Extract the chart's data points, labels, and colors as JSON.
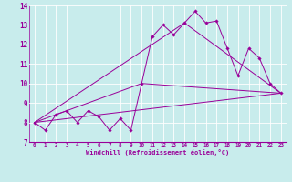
{
  "xlabel": "Windchill (Refroidissement éolien,°C)",
  "background_color": "#c8ecec",
  "grid_color": "#aadddd",
  "line_color": "#990099",
  "xlim": [
    -0.5,
    23.5
  ],
  "ylim": [
    7,
    14
  ],
  "xtick_labels": [
    "0",
    "1",
    "2",
    "3",
    "4",
    "5",
    "6",
    "7",
    "8",
    "9",
    "10",
    "11",
    "12",
    "13",
    "14",
    "15",
    "16",
    "17",
    "18",
    "19",
    "20",
    "21",
    "22",
    "23"
  ],
  "ytick_labels": [
    "7",
    "8",
    "9",
    "10",
    "11",
    "12",
    "13",
    "14"
  ],
  "series1_x": [
    0,
    1,
    2,
    3,
    4,
    5,
    6,
    7,
    8,
    9,
    10,
    11,
    12,
    13,
    14,
    15,
    16,
    17,
    18,
    19,
    20,
    21,
    22,
    23
  ],
  "series1_y": [
    8.0,
    7.6,
    8.4,
    8.6,
    8.0,
    8.6,
    8.3,
    7.6,
    8.2,
    7.6,
    10.0,
    12.4,
    13.0,
    12.5,
    13.1,
    13.7,
    13.1,
    13.2,
    11.8,
    10.4,
    11.8,
    11.3,
    10.0,
    9.5
  ],
  "series2_x": [
    0,
    23
  ],
  "series2_y": [
    8.0,
    9.5
  ],
  "series3_x": [
    0,
    10,
    23
  ],
  "series3_y": [
    8.0,
    10.0,
    9.5
  ],
  "series4_x": [
    0,
    14,
    23
  ],
  "series4_y": [
    8.0,
    13.1,
    9.5
  ]
}
